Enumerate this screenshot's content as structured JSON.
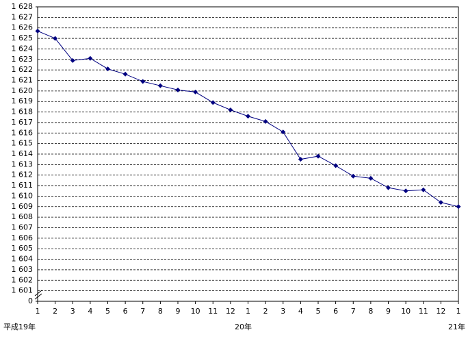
{
  "chart_data": {
    "type": "line",
    "categories": [
      "1",
      "2",
      "3",
      "4",
      "5",
      "6",
      "7",
      "8",
      "9",
      "10",
      "11",
      "12",
      "1",
      "2",
      "3",
      "4",
      "5",
      "6",
      "7",
      "8",
      "9",
      "10",
      "11",
      "12",
      "1"
    ],
    "year_labels": [
      "平成19年",
      null,
      null,
      null,
      null,
      null,
      null,
      null,
      null,
      null,
      null,
      null,
      "20年",
      null,
      null,
      null,
      null,
      null,
      null,
      null,
      null,
      null,
      null,
      null,
      "21年"
    ],
    "series": [
      {
        "color": "#000080",
        "values": [
          1625.7,
          1625.0,
          1622.9,
          1623.1,
          1622.1,
          1621.6,
          1620.9,
          1620.5,
          1620.1,
          1619.9,
          1618.9,
          1618.2,
          1617.6,
          1617.1,
          1616.1,
          1613.5,
          1613.8,
          1612.9,
          1611.9,
          1611.7,
          1610.8,
          1610.5,
          1610.6,
          1609.4,
          1609.0
        ]
      }
    ],
    "ylim": [
      0,
      1628
    ],
    "y_break": true,
    "yticks": [
      0,
      {
        "value": 1601,
        "label": "1 601"
      },
      {
        "value": 1602,
        "label": "1 602"
      },
      {
        "value": 1603,
        "label": "1 603"
      },
      {
        "value": 1604,
        "label": "1 604"
      },
      {
        "value": 1605,
        "label": "1 605"
      },
      {
        "value": 1606,
        "label": "1 606"
      },
      {
        "value": 1607,
        "label": "1 607"
      },
      {
        "value": 1608,
        "label": "1 608"
      },
      {
        "value": 1609,
        "label": "1 609"
      },
      {
        "value": 1610,
        "label": "1 610"
      },
      {
        "value": 1611,
        "label": "1 611"
      },
      {
        "value": 1612,
        "label": "1 612"
      },
      {
        "value": 1613,
        "label": "1 613"
      },
      {
        "value": 1614,
        "label": "1 614"
      },
      {
        "value": 1615,
        "label": "1 615"
      },
      {
        "value": 1616,
        "label": "1 616"
      },
      {
        "value": 1617,
        "label": "1 617"
      },
      {
        "value": 1618,
        "label": "1 618"
      },
      {
        "value": 1619,
        "label": "1 619"
      },
      {
        "value": 1620,
        "label": "1 620"
      },
      {
        "value": 1621,
        "label": "1 621"
      },
      {
        "value": 1622,
        "label": "1 622"
      },
      {
        "value": 1623,
        "label": "1 623"
      },
      {
        "value": 1624,
        "label": "1 624"
      },
      {
        "value": 1625,
        "label": "1 625"
      },
      {
        "value": 1626,
        "label": "1 626"
      },
      {
        "value": 1627,
        "label": "1 627"
      },
      {
        "value": 1628,
        "label": "1 628"
      }
    ],
    "grid": true
  }
}
